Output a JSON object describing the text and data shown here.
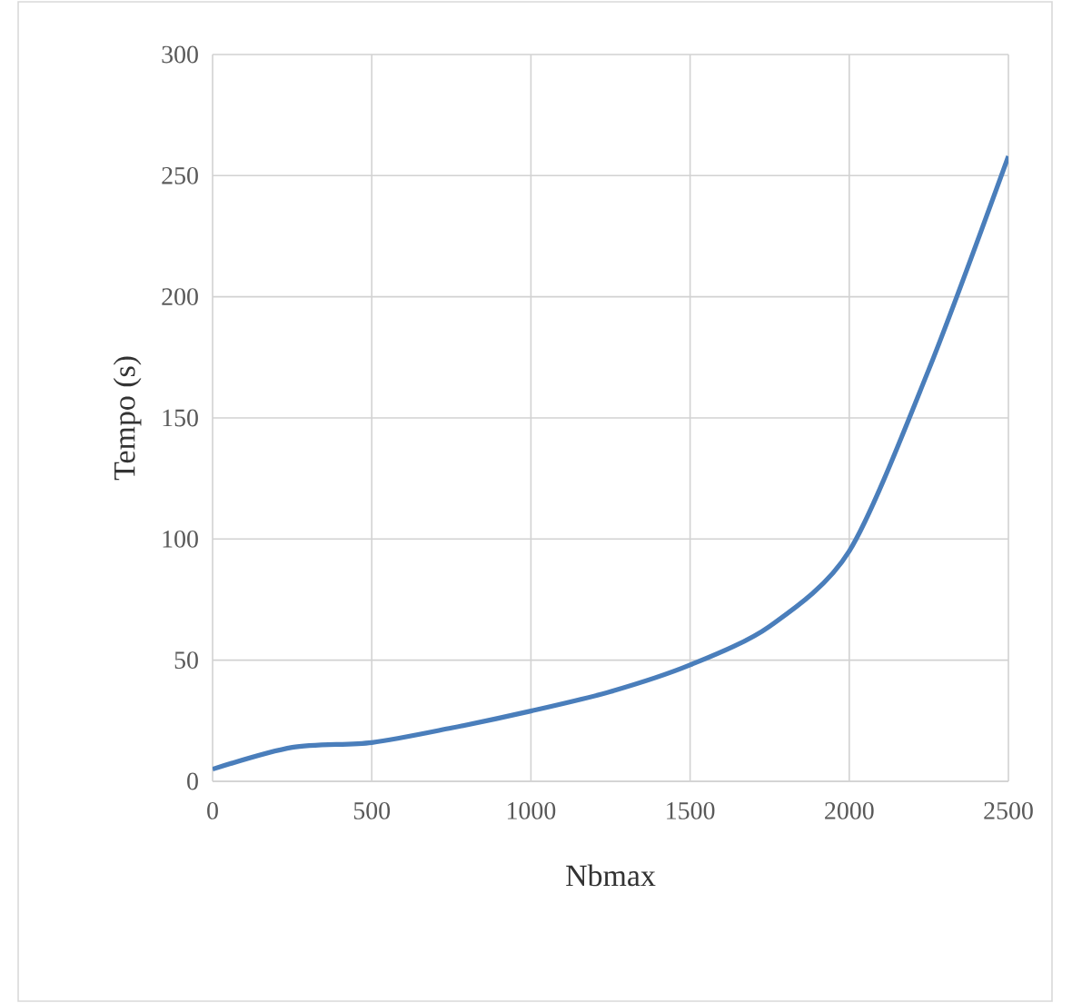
{
  "chart_data": {
    "type": "line",
    "xlabel": "Nbmax",
    "ylabel": "Tempo (s)",
    "x": [
      0,
      250,
      500,
      750,
      1000,
      1250,
      1500,
      1750,
      2000,
      2250,
      2500
    ],
    "series": [
      {
        "color": "#4a7ebb",
        "values": [
          5,
          14,
          16,
          22,
          29,
          37,
          48,
          64,
          95,
          170,
          258
        ]
      }
    ],
    "xlim": [
      0,
      2500
    ],
    "xticks": [
      0,
      500,
      1000,
      1500,
      2000,
      2500
    ],
    "ylim": [
      0,
      300
    ],
    "yticks": [
      0,
      50,
      100,
      150,
      200,
      250,
      300
    ],
    "grid": true,
    "marker": "none",
    "line_style": "solid"
  }
}
